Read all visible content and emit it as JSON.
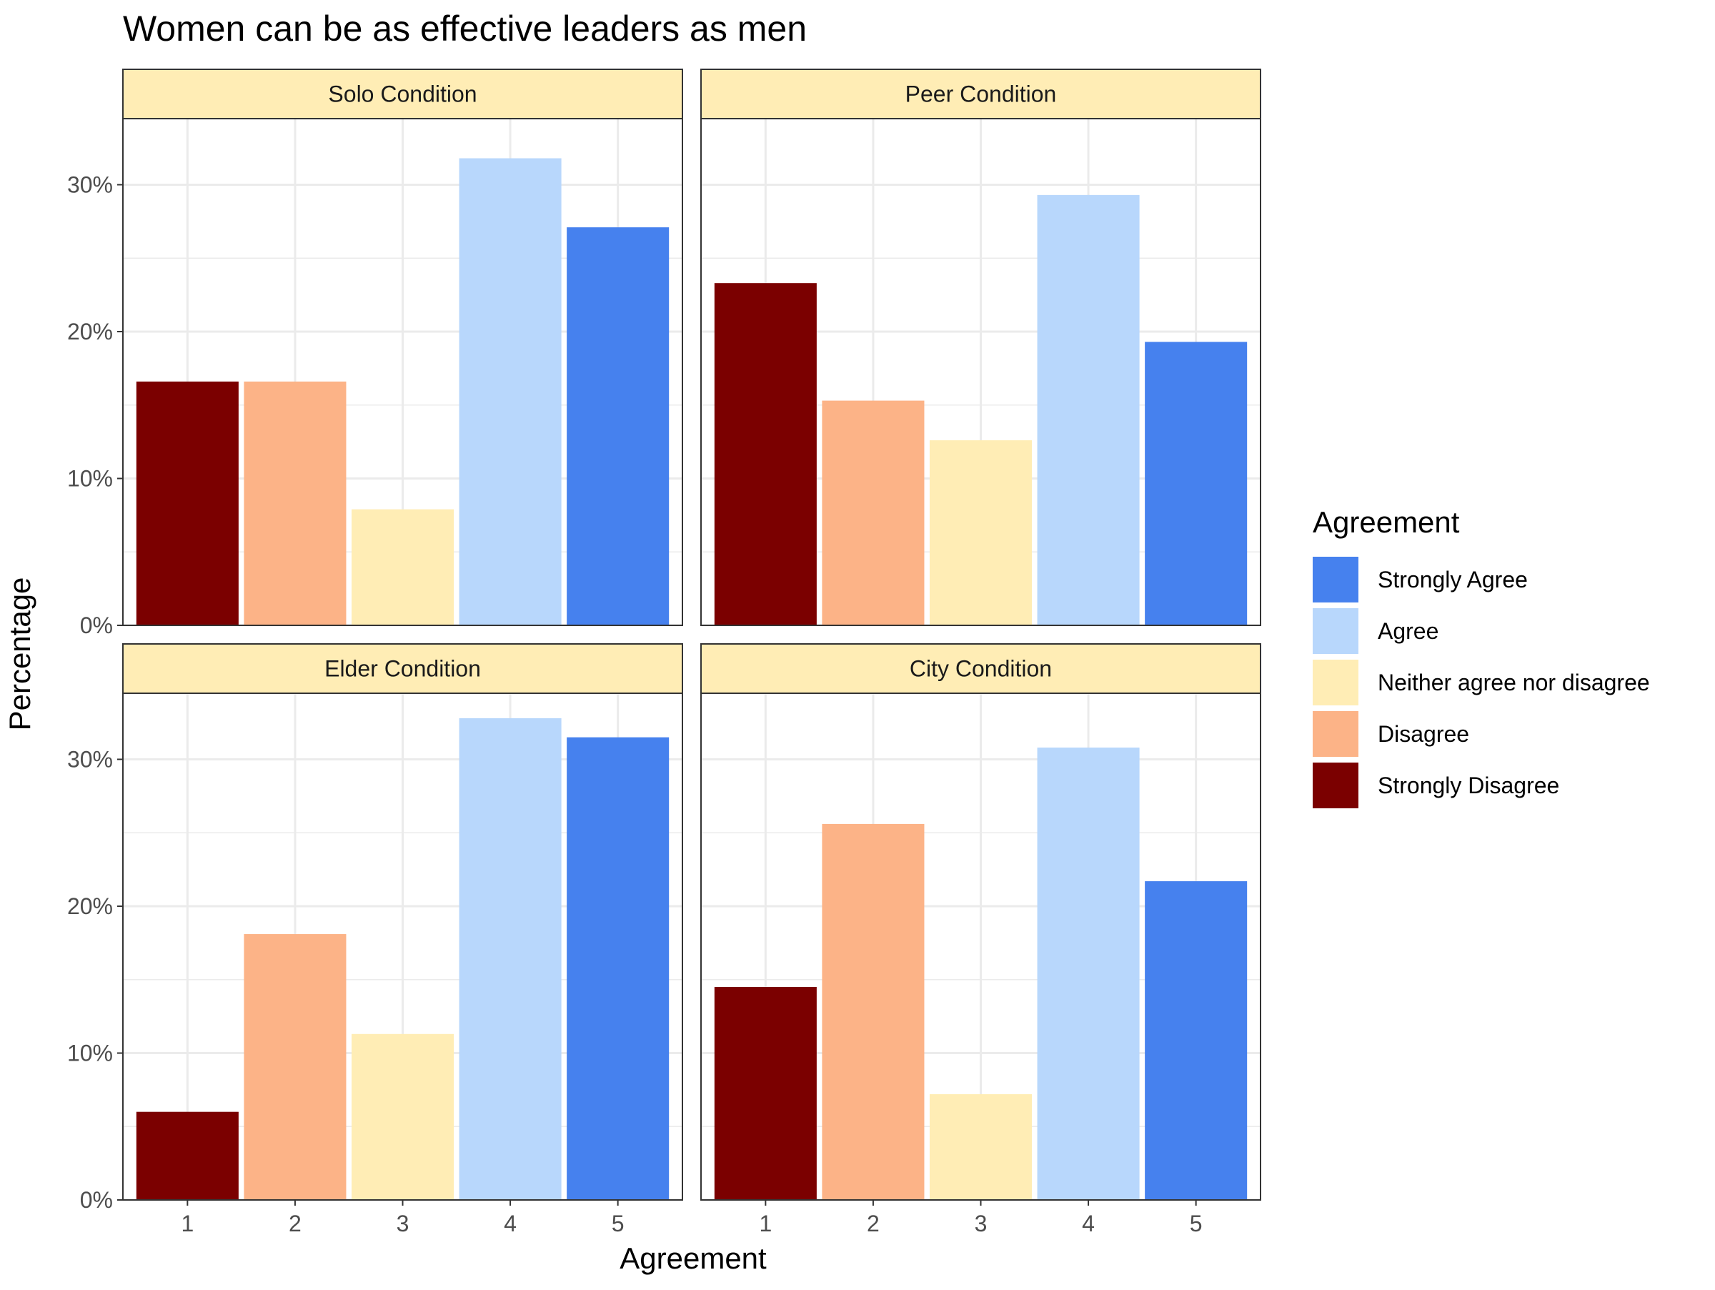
{
  "chart_data": {
    "type": "bar",
    "title": "Women can be as effective leaders as men",
    "xlabel": "Agreement",
    "ylabel": "Percentage",
    "categories": [
      "1",
      "2",
      "3",
      "4",
      "5"
    ],
    "ylim": [
      0,
      0.345
    ],
    "yticks": [
      0,
      0.1,
      0.2,
      0.3
    ],
    "ytick_labels": [
      "0%",
      "10%",
      "20%",
      "30%"
    ],
    "grid": true,
    "panel_strip_color": "#FFEDB5",
    "legend": {
      "title": "Agreement",
      "position": "right",
      "entries": [
        {
          "label": "Strongly Agree",
          "color": "#4681EE"
        },
        {
          "label": "Agree",
          "color": "#B8D7FC"
        },
        {
          "label": "Neither agree nor disagree",
          "color": "#FFEDB5"
        },
        {
          "label": "Disagree",
          "color": "#FCB387"
        },
        {
          "label": "Strongly Disagree",
          "color": "#7B0000"
        }
      ]
    },
    "bar_colors": [
      "#7B0000",
      "#FCB387",
      "#FFEDB5",
      "#B8D7FC",
      "#4681EE"
    ],
    "panels": [
      {
        "name": "Solo Condition",
        "values": [
          0.166,
          0.166,
          0.079,
          0.318,
          0.271
        ]
      },
      {
        "name": "Peer Condition",
        "values": [
          0.233,
          0.153,
          0.126,
          0.293,
          0.193
        ]
      },
      {
        "name": "Elder Condition",
        "values": [
          0.06,
          0.181,
          0.113,
          0.328,
          0.315
        ]
      },
      {
        "name": "City Condition",
        "values": [
          0.145,
          0.256,
          0.072,
          0.308,
          0.217
        ]
      }
    ]
  }
}
